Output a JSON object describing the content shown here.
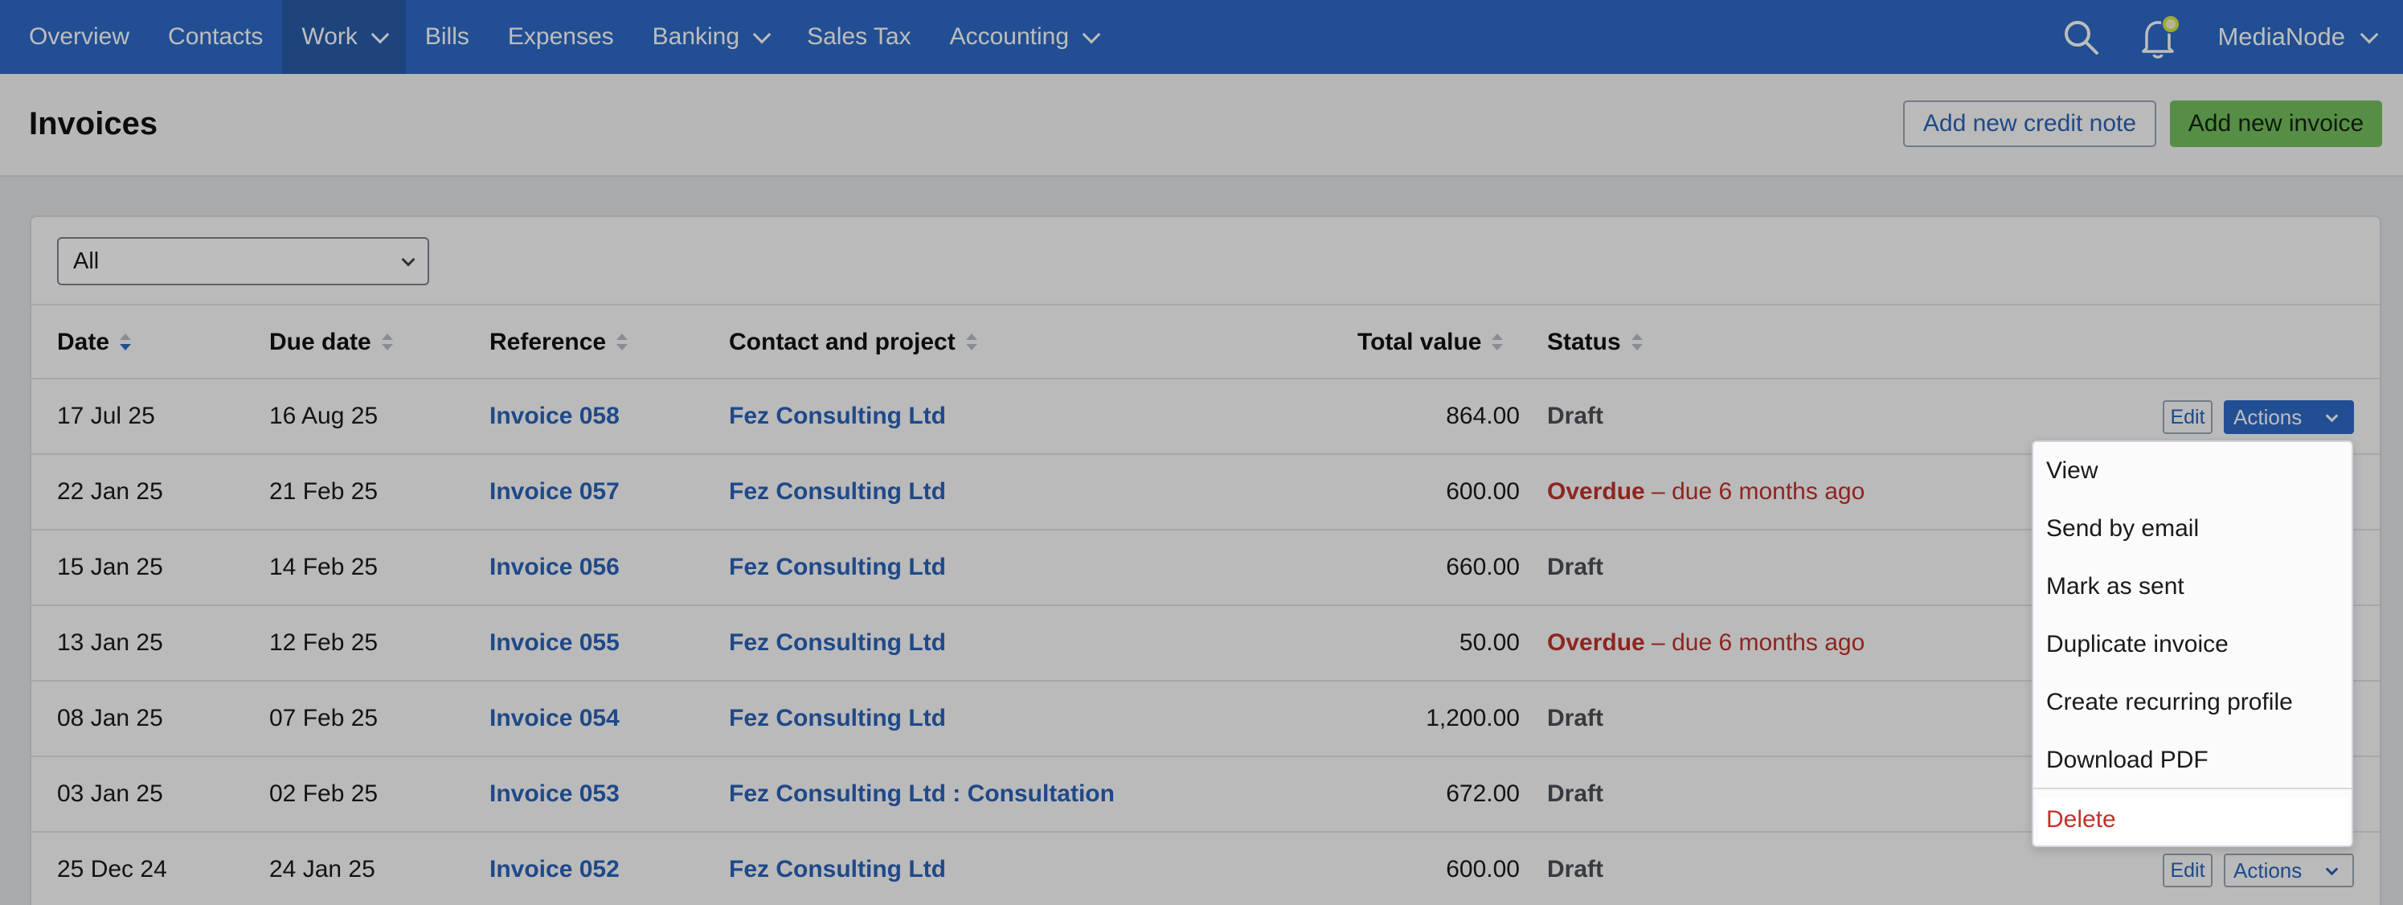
{
  "nav": {
    "items": [
      {
        "label": "Overview",
        "dropdown": false
      },
      {
        "label": "Contacts",
        "dropdown": false
      },
      {
        "label": "Work",
        "dropdown": true,
        "active": true
      },
      {
        "label": "Bills",
        "dropdown": false
      },
      {
        "label": "Expenses",
        "dropdown": false
      },
      {
        "label": "Banking",
        "dropdown": true
      },
      {
        "label": "Sales Tax",
        "dropdown": false
      },
      {
        "label": "Accounting",
        "dropdown": true
      }
    ],
    "search_icon": "search-icon",
    "bell_icon": "bell-icon",
    "user_label": "MediaNode"
  },
  "header": {
    "title": "Invoices",
    "credit_note_button": "Add new credit note",
    "new_invoice_button": "Add new invoice"
  },
  "filter": {
    "selected": "All"
  },
  "table": {
    "columns": [
      "Date",
      "Due date",
      "Reference",
      "Contact and project",
      "Total value",
      "Status"
    ],
    "rows": [
      {
        "date": "17 Jul 25",
        "due": "16 Aug 25",
        "reference": "Invoice 058",
        "contact": "Fez Consulting Ltd",
        "total": "864.00",
        "status": "Draft",
        "status_detail": ""
      },
      {
        "date": "22 Jan 25",
        "due": "21 Feb 25",
        "reference": "Invoice 057",
        "contact": "Fez Consulting Ltd",
        "total": "600.00",
        "status": "Overdue",
        "status_detail": " – due 6 months ago"
      },
      {
        "date": "15 Jan 25",
        "due": "14 Feb 25",
        "reference": "Invoice 056",
        "contact": "Fez Consulting Ltd",
        "total": "660.00",
        "status": "Draft",
        "status_detail": ""
      },
      {
        "date": "13 Jan 25",
        "due": "12 Feb 25",
        "reference": "Invoice 055",
        "contact": "Fez Consulting Ltd",
        "total": "50.00",
        "status": "Overdue",
        "status_detail": " – due 6 months ago"
      },
      {
        "date": "08 Jan 25",
        "due": "07 Feb 25",
        "reference": "Invoice 054",
        "contact": "Fez Consulting Ltd",
        "total": "1,200.00",
        "status": "Draft",
        "status_detail": ""
      },
      {
        "date": "03 Jan 25",
        "due": "02 Feb 25",
        "reference": "Invoice 053",
        "contact": "Fez Consulting Ltd : Consultation",
        "total": "672.00",
        "status": "Draft",
        "status_detail": ""
      },
      {
        "date": "25 Dec 24",
        "due": "24 Jan 25",
        "reference": "Invoice 052",
        "contact": "Fez Consulting Ltd",
        "total": "600.00",
        "status": "Draft",
        "status_detail": ""
      }
    ],
    "edit_label": "Edit",
    "actions_label": "Actions"
  },
  "actions_menu": {
    "items": [
      "View",
      "Send by email",
      "Mark as sent",
      "Duplicate invoice",
      "Create recurring profile",
      "Download PDF"
    ],
    "delete_label": "Delete"
  },
  "colors": {
    "nav_bg": "#2f6bc7",
    "link": "#2b63b8",
    "overdue": "#c0322b",
    "primary_button": "#74c05f"
  }
}
